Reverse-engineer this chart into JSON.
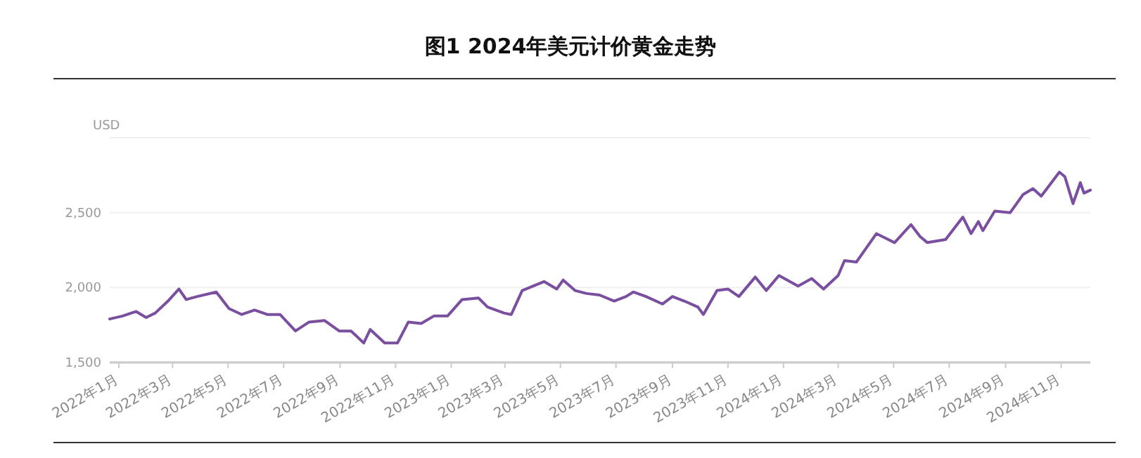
{
  "chart_data": {
    "type": "line",
    "title": "图1  2024年美元计价黄金走势",
    "ylabel": "USD",
    "x": [
      "2021-12-22",
      "2022-01-05",
      "2022-01-20",
      "2022-01-31",
      "2022-02-10",
      "2022-02-24",
      "2022-03-08",
      "2022-03-16",
      "2022-03-28",
      "2022-04-18",
      "2022-05-02",
      "2022-05-16",
      "2022-05-30",
      "2022-06-13",
      "2022-06-27",
      "2022-07-14",
      "2022-07-29",
      "2022-08-15",
      "2022-08-31",
      "2022-09-13",
      "2022-09-27",
      "2022-10-04",
      "2022-10-20",
      "2022-11-03",
      "2022-11-15",
      "2022-11-29",
      "2022-12-13",
      "2022-12-28",
      "2023-01-13",
      "2023-01-31",
      "2023-02-10",
      "2023-02-28",
      "2023-03-08",
      "2023-03-20",
      "2023-04-05",
      "2023-04-13",
      "2023-04-27",
      "2023-05-04",
      "2023-05-17",
      "2023-05-30",
      "2023-06-13",
      "2023-06-29",
      "2023-07-12",
      "2023-07-20",
      "2023-08-03",
      "2023-08-21",
      "2023-09-01",
      "2023-09-14",
      "2023-09-29",
      "2023-10-05",
      "2023-10-20",
      "2023-11-01",
      "2023-11-13",
      "2023-12-01",
      "2023-12-13",
      "2023-12-27",
      "2024-01-17",
      "2024-02-01",
      "2024-02-14",
      "2024-03-01",
      "2024-03-08",
      "2024-03-21",
      "2024-04-12",
      "2024-04-22",
      "2024-05-02",
      "2024-05-20",
      "2024-05-30",
      "2024-06-07",
      "2024-06-27",
      "2024-07-16",
      "2024-07-25",
      "2024-08-02",
      "2024-08-07",
      "2024-08-20",
      "2024-09-06",
      "2024-09-20",
      "2024-10-01",
      "2024-10-10",
      "2024-10-30",
      "2024-11-05",
      "2024-11-14",
      "2024-11-22",
      "2024-11-26",
      "2024-12-03"
    ],
    "series": [
      {
        "color": "#7b4fa0",
        "values": [
          1790,
          1810,
          1840,
          1800,
          1830,
          1910,
          1990,
          1920,
          1940,
          1970,
          1860,
          1820,
          1850,
          1820,
          1820,
          1710,
          1770,
          1780,
          1710,
          1710,
          1630,
          1720,
          1630,
          1630,
          1770,
          1760,
          1810,
          1810,
          1920,
          1930,
          1870,
          1830,
          1820,
          1980,
          2020,
          2040,
          1990,
          2050,
          1980,
          1960,
          1950,
          1910,
          1940,
          1970,
          1940,
          1890,
          1940,
          1910,
          1870,
          1820,
          1980,
          1990,
          1940,
          2070,
          1980,
          2080,
          2010,
          2060,
          1990,
          2080,
          2180,
          2170,
          2360,
          2330,
          2300,
          2420,
          2340,
          2300,
          2320,
          2470,
          2360,
          2440,
          2380,
          2510,
          2500,
          2620,
          2660,
          2610,
          2770,
          2740,
          2560,
          2700,
          2630,
          2650
        ]
      }
    ],
    "xlim": [
      "2021-12-22",
      "2024-12-03"
    ],
    "xticks": [
      {
        "value": "2022-01-01",
        "label": "2022年1月"
      },
      {
        "value": "2022-03-01",
        "label": "2022年3月"
      },
      {
        "value": "2022-05-01",
        "label": "2022年5月"
      },
      {
        "value": "2022-07-01",
        "label": "2022年7月"
      },
      {
        "value": "2022-09-01",
        "label": "2022年9月"
      },
      {
        "value": "2022-11-01",
        "label": "2022年11月"
      },
      {
        "value": "2023-01-01",
        "label": "2023年1月"
      },
      {
        "value": "2023-03-01",
        "label": "2023年3月"
      },
      {
        "value": "2023-05-01",
        "label": "2023年5月"
      },
      {
        "value": "2023-07-01",
        "label": "2023年7月"
      },
      {
        "value": "2023-09-01",
        "label": "2023年9月"
      },
      {
        "value": "2023-11-01",
        "label": "2023年11月"
      },
      {
        "value": "2024-01-01",
        "label": "2024年1月"
      },
      {
        "value": "2024-03-01",
        "label": "2024年3月"
      },
      {
        "value": "2024-05-01",
        "label": "2024年5月"
      },
      {
        "value": "2024-07-01",
        "label": "2024年7月"
      },
      {
        "value": "2024-09-01",
        "label": "2024年9月"
      },
      {
        "value": "2024-11-01",
        "label": "2024年11月"
      }
    ],
    "ylim": [
      1500,
      3000
    ],
    "yticks": [
      {
        "value": 1500,
        "label": "1,500"
      },
      {
        "value": 2000,
        "label": "2,000"
      },
      {
        "value": 2500,
        "label": "2,500"
      },
      {
        "value": 3000,
        "label": null
      }
    ],
    "grid": "y",
    "marker": "none",
    "line_style": "solid"
  }
}
